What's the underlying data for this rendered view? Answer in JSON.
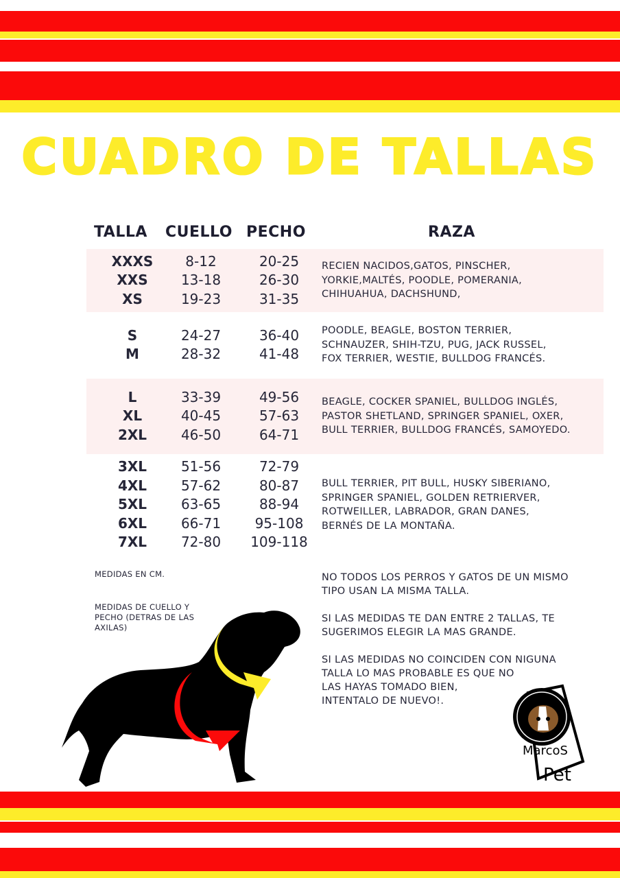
{
  "title": "CUADRO DE TALLAS",
  "colors": {
    "red": "#fb0a0a",
    "yellow": "#fdec2a",
    "row_highlight": "#fdf0f0",
    "text": "#262638"
  },
  "table": {
    "headers": [
      "TALLA",
      "CUELLO",
      "PECHO",
      "RAZA"
    ],
    "groups": [
      {
        "tallas": [
          "XXXS",
          "XXS",
          "XS"
        ],
        "cuello": [
          "8-12",
          "13-18",
          "19-23"
        ],
        "pecho": [
          "20-25",
          "26-30",
          "31-35"
        ],
        "raza": [
          "RECIEN NACIDOS,GATOS, PINSCHER,",
          "YORKIE,MALTÉS, POODLE, POMERANIA,",
          "CHIHUAHUA, DACHSHUND,"
        ]
      },
      {
        "tallas": [
          "S",
          "M"
        ],
        "cuello": [
          "24-27",
          "28-32"
        ],
        "pecho": [
          "36-40",
          "41-48"
        ],
        "raza": [
          "POODLE, BEAGLE, BOSTON TERRIER,",
          "SCHNAUZER, SHIH-TZU, PUG, JACK RUSSEL,",
          "FOX TERRIER, WESTIE, BULLDOG FRANCÉS."
        ]
      },
      {
        "tallas": [
          "L",
          "XL",
          "2XL"
        ],
        "cuello": [
          "33-39",
          "40-45",
          "46-50"
        ],
        "pecho": [
          "49-56",
          "57-63",
          "64-71"
        ],
        "raza": [
          "BEAGLE, COCKER SPANIEL, BULLDOG INGLÉS,",
          "PASTOR SHETLAND, SPRINGER SPANIEL, OXER,",
          "BULL TERRIER, BULLDOG FRANCÉS, SAMOYEDO."
        ]
      },
      {
        "tallas": [
          "3XL",
          "4XL",
          "5XL",
          "6XL",
          "7XL"
        ],
        "cuello": [
          "51-56",
          "57-62",
          "63-65",
          "66-71",
          "72-80"
        ],
        "pecho": [
          "72-79",
          "80-87",
          "88-94",
          "95-108",
          "109-118"
        ],
        "raza": [
          "BULL TERRIER, PIT BULL, HUSKY SIBERIANO,",
          "SPRINGER SPANIEL, GOLDEN RETRIERVER,",
          "ROTWEILLER, LABRADOR, GRAN DANES,",
          "BERNÉS DE LA MONTAÑA."
        ]
      }
    ]
  },
  "notes": {
    "units": "MEDIDAS EN CM.",
    "measure": [
      "MEDIDAS DE CUELLO Y",
      "PECHO (DETRAS DE LAS",
      "AXILAS)"
    ]
  },
  "tips": [
    [
      "NO TODOS LOS PERROS Y GATOS DE UN MISMO",
      "TIPO USAN LA MISMA TALLA."
    ],
    [
      "SI LAS MEDIDAS TE DAN ENTRE 2 TALLAS, TE",
      "SUGERIMOS ELEGIR LA MAS GRANDE."
    ],
    [
      "SI LAS MEDIDAS NO COINCIDEN CON NIGUNA",
      "TALLA LO MAS PROBABLE ES QUE NO",
      "LAS HAYAS TOMADO BIEN,",
      "INTENTALO DE NUEVO!."
    ]
  ],
  "logo": {
    "text": "MarcoS Pet"
  }
}
